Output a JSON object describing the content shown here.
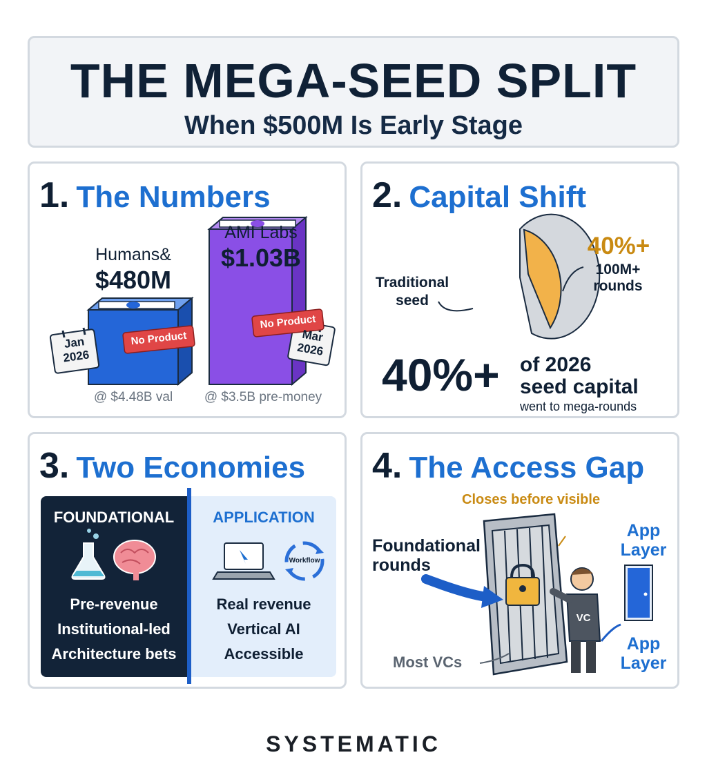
{
  "header": {
    "title": "THE MEGA-SEED SPLIT",
    "subtitle": "When $500M Is Early Stage"
  },
  "panel1": {
    "number": "1.",
    "title": "The Numbers",
    "left": {
      "company": "Humans&",
      "amount": "$480M",
      "date_month": "Jan",
      "date_year": "2026",
      "tag": "No Product",
      "valuation": "@ $4.48B val",
      "color": "#2466d8"
    },
    "right": {
      "company": "AMI Labs",
      "amount": "$1.03B",
      "date_month": "Mar",
      "date_year": "2026",
      "tag": "No Product",
      "valuation": "@ $3.5B pre-money",
      "color": "#8a4fe6"
    }
  },
  "panel2": {
    "number": "2.",
    "title": "Capital Shift",
    "pie": {
      "traditional_label_1": "Traditional",
      "traditional_label_2": "seed",
      "mega_pct": "40%+",
      "mega_label_1": "100M+",
      "mega_label_2": "rounds",
      "mega_color": "#f2b24a",
      "trad_color": "#d4d8dd"
    },
    "stat": {
      "value": "40%+",
      "line1": "of 2026",
      "line2": "seed capital",
      "line3": "went to mega-rounds"
    }
  },
  "panel3": {
    "number": "3.",
    "title": "Two Economies",
    "foundational": {
      "heading": "FOUNDATIONAL",
      "items": [
        "Pre-revenue",
        "Institutional-led",
        "Architecture bets"
      ]
    },
    "application": {
      "heading": "APPLICATION",
      "cycle_label": "Workflow",
      "items": [
        "Real revenue",
        "Vertical AI",
        "Accessible"
      ]
    }
  },
  "panel4": {
    "number": "4.",
    "title": "The Access Gap",
    "closes": "Closes before visible",
    "foundational_1": "Foundational",
    "foundational_2": "rounds",
    "vc": "VC",
    "app_top_1": "App",
    "app_top_2": "Layer",
    "app_bottom_1": "App",
    "app_bottom_2": "Layer",
    "most_vcs": "Most VCs"
  },
  "brand": "SYSTEMATIC"
}
